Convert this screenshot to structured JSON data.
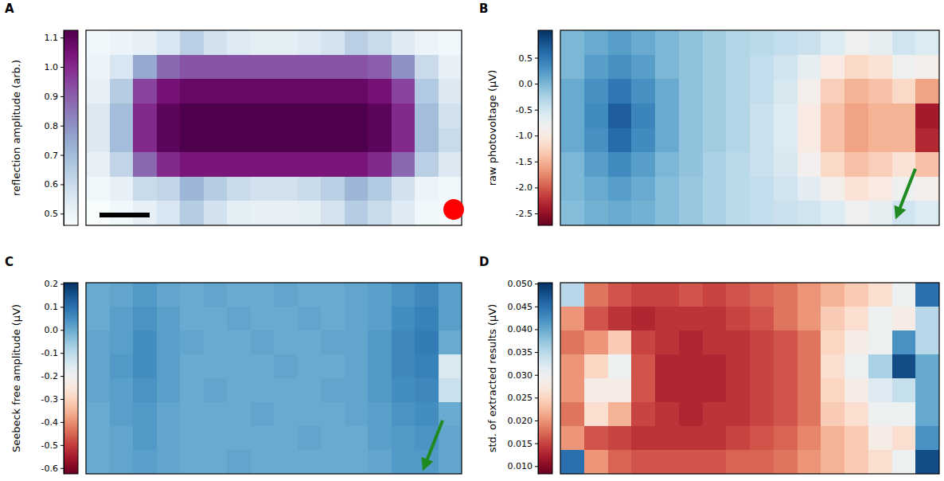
{
  "chart_data": [
    {
      "type": "heatmap",
      "title": "A",
      "color": "BuPu",
      "colorbar": {
        "label": "reflection amplitude (arb.)",
        "range": [
          0.46,
          1.125
        ],
        "ticks": [
          0.5,
          0.6,
          0.7,
          0.8,
          0.9,
          {
            "value": 1,
            "label": "1.0"
          },
          1.1
        ]
      },
      "cells": [
        [
          0.48,
          0.5,
          0.52,
          0.56,
          0.64,
          0.58,
          0.54,
          0.53,
          0.53,
          0.54,
          0.57,
          0.64,
          0.6,
          0.54,
          0.5,
          0.48
        ],
        [
          0.5,
          0.56,
          0.75,
          0.88,
          0.92,
          0.92,
          0.92,
          0.92,
          0.92,
          0.92,
          0.92,
          0.92,
          0.9,
          0.8,
          0.6,
          0.52
        ],
        [
          0.52,
          0.65,
          0.95,
          1.05,
          1.08,
          1.08,
          1.08,
          1.08,
          1.08,
          1.08,
          1.08,
          1.08,
          1.05,
          0.95,
          0.66,
          0.55
        ],
        [
          0.55,
          0.7,
          1.0,
          1.1,
          1.12,
          1.12,
          1.12,
          1.12,
          1.12,
          1.12,
          1.12,
          1.12,
          1.1,
          1.0,
          0.7,
          0.58
        ],
        [
          0.55,
          0.7,
          1.0,
          1.1,
          1.12,
          1.12,
          1.12,
          1.12,
          1.12,
          1.12,
          1.12,
          1.12,
          1.1,
          1.0,
          0.7,
          0.6
        ],
        [
          0.52,
          0.62,
          0.88,
          1.0,
          1.04,
          1.04,
          1.04,
          1.04,
          1.04,
          1.04,
          1.04,
          1.04,
          1.0,
          0.88,
          0.64,
          0.55
        ],
        [
          0.48,
          0.52,
          0.6,
          0.62,
          0.72,
          0.65,
          0.6,
          0.58,
          0.58,
          0.6,
          0.64,
          0.72,
          0.66,
          0.58,
          0.5,
          0.48
        ],
        [
          0.46,
          0.48,
          0.52,
          0.56,
          0.65,
          0.58,
          0.53,
          0.52,
          0.52,
          0.53,
          0.57,
          0.65,
          0.6,
          0.54,
          0.48,
          0.47
        ]
      ]
    },
    {
      "type": "heatmap",
      "title": "B",
      "color": "RdBu",
      "colorbar": {
        "label": "raw photovoltage (μV)",
        "range": [
          -2.73,
          1.03
        ],
        "ticks": [
          0.5,
          {
            "value": 0,
            "label": "0.0"
          },
          -0.5,
          {
            "value": -1,
            "label": "-1.0"
          },
          -1.5,
          {
            "value": -2,
            "label": "-2.0"
          },
          -2.5
        ]
      },
      "cells": [
        [
          0.0,
          0.1,
          0.2,
          0.1,
          0.0,
          -0.1,
          -0.2,
          -0.3,
          -0.35,
          -0.4,
          -0.45,
          -0.6,
          -0.8,
          -0.7,
          -0.5,
          -0.6
        ],
        [
          0.0,
          0.2,
          0.3,
          0.2,
          0.0,
          -0.1,
          -0.2,
          -0.3,
          -0.4,
          -0.5,
          -0.7,
          -1.0,
          -1.2,
          -1.1,
          -0.8,
          -0.9
        ],
        [
          0.1,
          0.3,
          0.5,
          0.3,
          0.1,
          -0.1,
          -0.2,
          -0.3,
          -0.4,
          -0.55,
          -0.9,
          -1.3,
          -1.5,
          -1.4,
          -1.2,
          -1.6
        ],
        [
          0.1,
          0.35,
          0.7,
          0.4,
          0.1,
          -0.1,
          -0.2,
          -0.3,
          -0.45,
          -0.6,
          -1.0,
          -1.4,
          -1.6,
          -1.5,
          -1.5,
          -2.4
        ],
        [
          0.1,
          0.3,
          0.6,
          0.35,
          0.1,
          -0.1,
          -0.2,
          -0.3,
          -0.45,
          -0.6,
          -1.0,
          -1.4,
          -1.6,
          -1.5,
          -1.5,
          -2.3
        ],
        [
          0.0,
          0.2,
          0.35,
          0.2,
          0.0,
          -0.1,
          -0.25,
          -0.35,
          -0.45,
          -0.55,
          -0.85,
          -1.2,
          -1.4,
          -1.3,
          -1.1,
          -1.4
        ],
        [
          0.0,
          0.1,
          0.2,
          0.1,
          -0.05,
          -0.15,
          -0.25,
          -0.35,
          -0.4,
          -0.5,
          -0.65,
          -0.9,
          -1.1,
          -1.0,
          -0.8,
          -0.9
        ],
        [
          -0.05,
          0.05,
          0.1,
          0.05,
          -0.05,
          -0.15,
          -0.25,
          -0.35,
          -0.4,
          -0.45,
          -0.5,
          -0.6,
          -0.8,
          -0.7,
          -0.5,
          -0.6
        ]
      ]
    },
    {
      "type": "heatmap",
      "title": "C",
      "color": "RdBu",
      "colorbar": {
        "label": "Seebeck free amplitude (μV)",
        "range": [
          -0.625,
          0.205
        ],
        "ticks": [
          0.2,
          0.1,
          {
            "value": 0,
            "label": "0.0"
          },
          -0.1,
          -0.2,
          -0.3,
          -0.4,
          -0.5,
          -0.6
        ]
      },
      "cells": [
        [
          0.0,
          0.01,
          0.03,
          0.01,
          0.0,
          0.01,
          0.0,
          0.0,
          0.01,
          0.0,
          0.0,
          0.01,
          0.02,
          0.04,
          0.06,
          0.02
        ],
        [
          0.0,
          0.02,
          0.04,
          0.02,
          0.0,
          0.0,
          0.01,
          0.0,
          0.0,
          0.01,
          0.0,
          0.01,
          0.02,
          0.05,
          0.07,
          0.02
        ],
        [
          0.01,
          0.02,
          0.05,
          0.02,
          0.01,
          0.0,
          0.0,
          0.01,
          0.0,
          0.0,
          0.01,
          0.01,
          0.03,
          0.06,
          0.08,
          0.0
        ],
        [
          0.01,
          0.03,
          0.05,
          0.02,
          0.0,
          0.0,
          0.0,
          0.0,
          0.01,
          0.0,
          0.0,
          0.01,
          0.03,
          0.06,
          0.07,
          -0.15
        ],
        [
          0.01,
          0.02,
          0.04,
          0.02,
          0.0,
          0.01,
          0.0,
          0.0,
          0.0,
          0.0,
          0.01,
          0.01,
          0.03,
          0.05,
          0.06,
          -0.12
        ],
        [
          0.0,
          0.02,
          0.03,
          0.01,
          0.0,
          0.0,
          0.0,
          0.01,
          0.0,
          0.0,
          0.0,
          0.01,
          0.02,
          0.04,
          0.05,
          0.0
        ],
        [
          0.0,
          0.01,
          0.03,
          0.01,
          0.0,
          0.0,
          0.0,
          0.0,
          0.0,
          0.01,
          0.0,
          0.0,
          0.02,
          0.03,
          0.04,
          0.01
        ],
        [
          0.0,
          0.01,
          0.02,
          0.01,
          0.0,
          0.0,
          0.01,
          0.0,
          0.0,
          0.0,
          0.0,
          0.0,
          0.01,
          0.03,
          0.03,
          0.01
        ]
      ]
    },
    {
      "type": "heatmap",
      "title": "D",
      "color": "RdBu",
      "colorbar": {
        "label": "std. of extracted results (μV)",
        "range": [
          0.0083,
          0.0502
        ],
        "ticks": [
          {
            "value": 0.05,
            "label": "0.050"
          },
          0.045,
          {
            "value": 0.04,
            "label": "0.040"
          },
          0.035,
          {
            "value": 0.03,
            "label": "0.030"
          },
          0.025,
          {
            "value": 0.02,
            "label": "0.020"
          },
          0.015,
          {
            "value": 0.01,
            "label": "0.010"
          }
        ]
      },
      "cells": [
        [
          0.035,
          0.018,
          0.016,
          0.015,
          0.015,
          0.016,
          0.015,
          0.016,
          0.017,
          0.018,
          0.02,
          0.022,
          0.024,
          0.026,
          0.03,
          0.045
        ],
        [
          0.02,
          0.016,
          0.014,
          0.013,
          0.014,
          0.014,
          0.014,
          0.015,
          0.016,
          0.018,
          0.02,
          0.024,
          0.026,
          0.03,
          0.028,
          0.035
        ],
        [
          0.018,
          0.02,
          0.024,
          0.015,
          0.014,
          0.013,
          0.014,
          0.014,
          0.015,
          0.016,
          0.018,
          0.025,
          0.028,
          0.03,
          0.042,
          0.035
        ],
        [
          0.02,
          0.025,
          0.03,
          0.016,
          0.013,
          0.013,
          0.013,
          0.014,
          0.015,
          0.016,
          0.018,
          0.026,
          0.03,
          0.036,
          0.048,
          0.04
        ],
        [
          0.02,
          0.028,
          0.028,
          0.016,
          0.013,
          0.013,
          0.013,
          0.014,
          0.015,
          0.016,
          0.018,
          0.025,
          0.028,
          0.032,
          0.034,
          0.04
        ],
        [
          0.018,
          0.026,
          0.022,
          0.015,
          0.014,
          0.013,
          0.014,
          0.014,
          0.015,
          0.016,
          0.018,
          0.024,
          0.026,
          0.03,
          0.03,
          0.04
        ],
        [
          0.02,
          0.016,
          0.015,
          0.014,
          0.014,
          0.014,
          0.014,
          0.015,
          0.016,
          0.017,
          0.019,
          0.022,
          0.024,
          0.028,
          0.026,
          0.042
        ],
        [
          0.045,
          0.02,
          0.017,
          0.016,
          0.016,
          0.016,
          0.016,
          0.017,
          0.017,
          0.018,
          0.02,
          0.022,
          0.024,
          0.026,
          0.03,
          0.048
        ]
      ]
    }
  ]
}
